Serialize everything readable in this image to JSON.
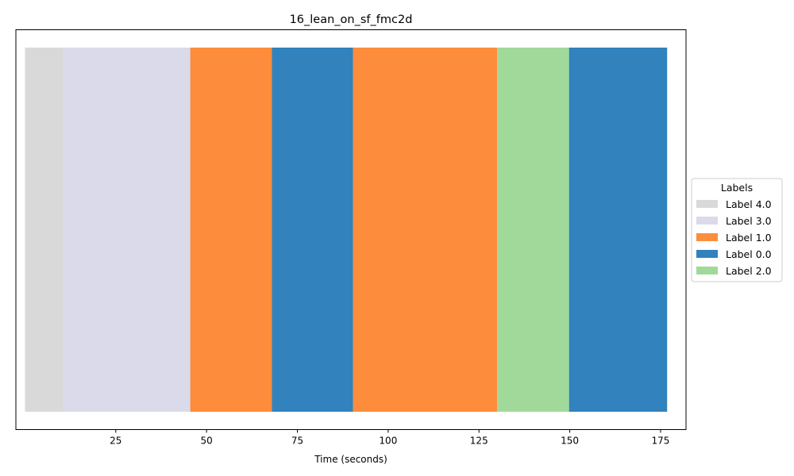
{
  "chart_data": {
    "type": "bar",
    "orientation": "horizontal-timeline",
    "title": "16_lean_on_sf_fmc2d",
    "xlabel": "Time (seconds)",
    "ylabel": "",
    "xlim": [
      -2.5,
      182.0
    ],
    "xticks": [
      25,
      50,
      75,
      100,
      125,
      150,
      175
    ],
    "grid": false,
    "legend": {
      "title": "Labels",
      "placement": "center-right-outside",
      "entries": [
        {
          "name": "Label 4.0",
          "color": "#d9d9d9"
        },
        {
          "name": "Label 3.0",
          "color": "#dadaeb"
        },
        {
          "name": "Label 1.0",
          "color": "#fd8d3c"
        },
        {
          "name": "Label 0.0",
          "color": "#3182bd"
        },
        {
          "name": "Label 2.0",
          "color": "#a1d99b"
        }
      ]
    },
    "segments": [
      {
        "label": "Label 4.0",
        "start": 0.0,
        "end": 10.5,
        "color": "#d9d9d9"
      },
      {
        "label": "Label 3.0",
        "start": 10.5,
        "end": 45.5,
        "color": "#dadaeb"
      },
      {
        "label": "Label 1.0",
        "start": 45.5,
        "end": 68.0,
        "color": "#fd8d3c"
      },
      {
        "label": "Label 0.0",
        "start": 68.0,
        "end": 90.3,
        "color": "#3182bd"
      },
      {
        "label": "Label 1.0",
        "start": 90.3,
        "end": 130.0,
        "color": "#fd8d3c"
      },
      {
        "label": "Label 2.0",
        "start": 130.0,
        "end": 149.8,
        "color": "#a1d99b"
      },
      {
        "label": "Label 0.0",
        "start": 149.8,
        "end": 176.8,
        "color": "#3182bd"
      }
    ]
  }
}
